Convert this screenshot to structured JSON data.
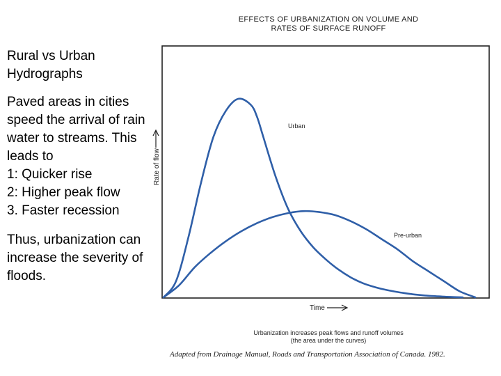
{
  "slide": {
    "title": "Rural vs Urban Hydrographs",
    "paragraph1": "Paved areas in cities speed the arrival of rain water to streams. This leads to",
    "points": [
      "1: Quicker rise",
      "2: Higher peak flow",
      "3. Faster recession"
    ],
    "paragraph2": "Thus, urbanization can increase the severity of floods."
  },
  "figure": {
    "title_line1": "EFFECTS OF URBANIZATION ON VOLUME AND",
    "title_line2": "RATES OF SURFACE RUNOFF",
    "caption_line1": "Urbanization increases peak flows and runoff volumes",
    "caption_line2": "(the area under the curves)",
    "source": "Adapted from Drainage Manual, Roads and Transportation Association of Canada. 1982."
  },
  "chart_data": {
    "type": "line",
    "xlabel": "Time",
    "ylabel": "Rate of flow",
    "xlim": [
      0,
      100
    ],
    "ylim": [
      0,
      100
    ],
    "line_color": "#2f5fa8",
    "series": [
      {
        "name": "Urban",
        "x": [
          0,
          4,
          8,
          12,
          16,
          20,
          24,
          28,
          30,
          32,
          36,
          40,
          44,
          48,
          52,
          56,
          60,
          64,
          68,
          72,
          76,
          80,
          84,
          88,
          92,
          96
        ],
        "y": [
          0,
          8,
          30,
          57,
          80,
          93,
          99,
          96,
          90,
          80,
          60,
          44,
          33,
          25,
          19,
          14,
          10,
          7,
          5,
          3.5,
          2.4,
          1.5,
          0.9,
          0.5,
          0.2,
          0
        ]
      },
      {
        "name": "Pre-urban",
        "x": [
          0,
          5,
          10,
          15,
          20,
          25,
          30,
          35,
          40,
          45,
          50,
          55,
          60,
          65,
          70,
          75,
          80,
          85,
          90,
          95,
          100
        ],
        "y": [
          0,
          6,
          15,
          22,
          28,
          33,
          37,
          40,
          42,
          43,
          42.5,
          41,
          38,
          34,
          29,
          24,
          18,
          13,
          8,
          3,
          0
        ]
      }
    ]
  }
}
